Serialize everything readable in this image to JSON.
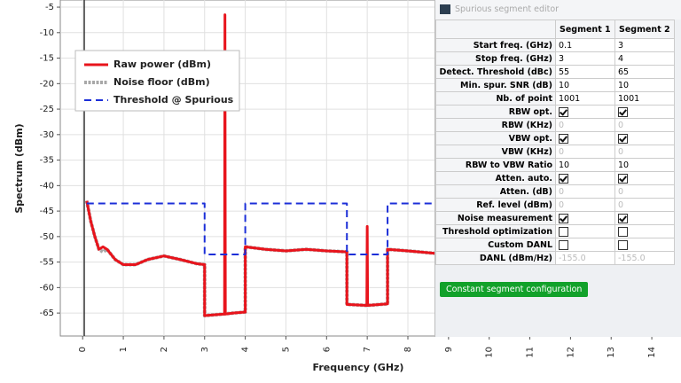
{
  "chart_data": {
    "type": "line",
    "xlabel": "Frequency (GHz)",
    "ylabel": "Spectrum (dBm)",
    "xlim": [
      -0.55,
      14.5
    ],
    "ylim": [
      -69.5,
      -3.6
    ],
    "xticks": [
      0,
      1,
      2,
      3,
      4,
      5,
      6,
      7,
      8,
      9,
      10,
      11,
      12,
      13,
      14
    ],
    "yticks": [
      -65,
      -60,
      -55,
      -50,
      -45,
      -40,
      -35,
      -30,
      -25,
      -20,
      -15,
      -10,
      -5
    ],
    "grid": true,
    "legend": "upper left",
    "series": [
      {
        "name": "Raw power (dBm)",
        "color": "#e8141c",
        "style": "solid",
        "x": [
          0.1,
          0.2,
          0.3,
          0.4,
          0.5,
          0.6,
          0.8,
          1.0,
          1.3,
          1.6,
          2.0,
          2.4,
          2.8,
          3.0,
          3.0,
          3.3,
          3.49,
          3.5,
          3.51,
          3.7,
          4.0,
          4.0,
          4.5,
          5.0,
          5.5,
          6.0,
          6.5,
          6.5,
          6.99,
          7.0,
          7.01,
          7.5,
          7.5,
          8.0,
          8.7
        ],
        "values": [
          -43,
          -47,
          -50,
          -52.5,
          -52,
          -52.5,
          -54.5,
          -55.5,
          -55.5,
          -54.5,
          -53.8,
          -54.5,
          -55.3,
          -55.5,
          -65.5,
          -65.3,
          -65.2,
          -6.5,
          -65.2,
          -65,
          -64.8,
          -52,
          -52.5,
          -52.8,
          -52.5,
          -52.8,
          -53,
          -63.3,
          -63.5,
          -48,
          -63.5,
          -63.2,
          -52.5,
          -52.8,
          -53.3
        ]
      },
      {
        "name": "Noise floor (dBm)",
        "color": "#a8a8a8",
        "style": "dotted",
        "x": [
          0.1,
          0.2,
          0.3,
          0.4,
          0.5,
          0.6,
          0.8,
          1.0,
          1.3,
          1.6,
          2.0,
          2.4,
          2.8,
          3.0,
          3.0,
          3.3,
          3.7,
          4.0,
          4.0,
          4.5,
          5.0,
          5.5,
          6.0,
          6.5,
          6.5,
          7.0,
          7.5,
          7.5,
          8.0,
          8.7
        ],
        "values": [
          -43,
          -47,
          -50,
          -52.5,
          -53,
          -52.5,
          -54.5,
          -55.5,
          -55.5,
          -54.5,
          -53.8,
          -54.5,
          -55.3,
          -55.5,
          -65.5,
          -65.3,
          -65,
          -64.8,
          -52,
          -52.5,
          -52.8,
          -52.5,
          -52.8,
          -53,
          -63.3,
          -63.5,
          -63.2,
          -52.5,
          -52.8,
          -53.3
        ]
      },
      {
        "name": "Threshold @ Spurious",
        "color": "#1c2fd8",
        "style": "dashed",
        "x": [
          0.1,
          3,
          3,
          4,
          4,
          6.5,
          6.5,
          7.5,
          7.5,
          8.7
        ],
        "values": [
          -43.5,
          -43.5,
          -53.5,
          -53.5,
          -43.5,
          -43.5,
          -53.5,
          -53.5,
          -43.5,
          -43.5
        ]
      }
    ]
  },
  "panel": {
    "title": "Spurious segment editor",
    "header": [
      "Segment 1",
      "Segment 2"
    ],
    "rows": [
      [
        "Start freq. (GHz)",
        "0.1",
        "3"
      ],
      [
        "Stop freq. (GHz)",
        "3",
        "4"
      ],
      [
        "Detect. Threshold (dBc)",
        "55",
        "65"
      ],
      [
        "Min. spur. SNR (dB)",
        "10",
        "10"
      ],
      [
        "Nb. of point",
        "1001",
        "1001"
      ],
      [
        "RBW opt.",
        true,
        true
      ],
      [
        "RBW (KHz)",
        "0",
        "0"
      ],
      [
        "VBW opt.",
        true,
        true
      ],
      [
        "VBW (KHz)",
        "0",
        "0"
      ],
      [
        "RBW to VBW Ratio",
        "10",
        "10"
      ],
      [
        "Atten. auto.",
        true,
        true
      ],
      [
        "Atten. (dB)",
        "0",
        "0"
      ],
      [
        "Ref. level (dBm)",
        "0",
        "0"
      ],
      [
        "Noise measurement",
        true,
        true
      ],
      [
        "Threshold optimization",
        false,
        false
      ],
      [
        "Custom DANL",
        false,
        false
      ],
      [
        "DANL (dBm/Hz)",
        "-155.0",
        "-155.0"
      ]
    ],
    "disabled_rows": [
      6,
      8,
      11,
      12,
      16
    ],
    "button": "Constant segment configuration"
  }
}
